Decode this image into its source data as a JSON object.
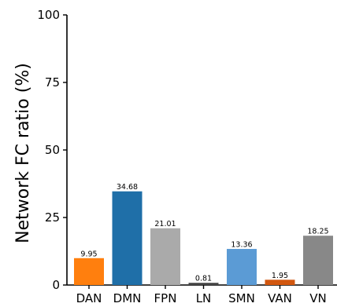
{
  "chart_data": {
    "type": "bar",
    "ylabel": "Network FC ratio (%)",
    "ylim": [
      0,
      100
    ],
    "yticks": [
      0,
      25,
      50,
      75,
      100
    ],
    "categories": [
      "DAN",
      "DMN",
      "FPN",
      "LN",
      "SMN",
      "VAN",
      "VN"
    ],
    "values": [
      9.95,
      34.68,
      21.01,
      0.81,
      13.36,
      1.95,
      18.25
    ],
    "value_labels": [
      "9.95",
      "34.68",
      "21.01",
      "0.81",
      "13.36",
      "1.95",
      "18.25"
    ],
    "colors": [
      "#ff7f0e",
      "#1f6fa8",
      "#aaaaaa",
      "#444444",
      "#5b9bd5",
      "#d2570f",
      "#888888"
    ],
    "grid": false,
    "legend": "none"
  }
}
